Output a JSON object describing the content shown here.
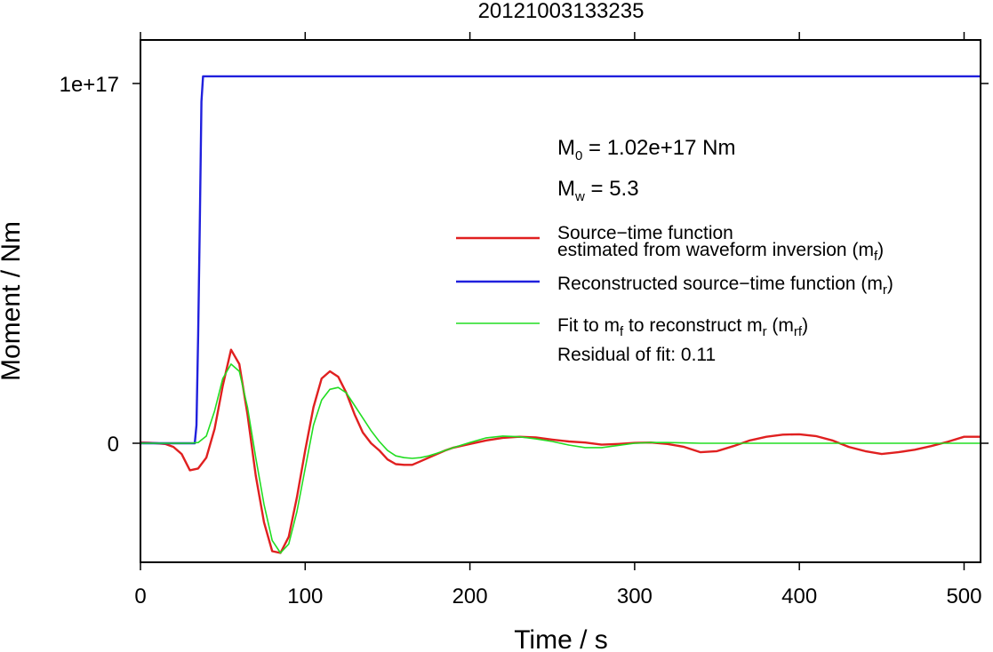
{
  "chart_data": {
    "type": "line",
    "title": "20121003133235",
    "xlabel": "Time / s",
    "ylabel": "Moment / Nm",
    "xlim": [
      0,
      510
    ],
    "ylim": [
      -3.3e+16,
      1.12e+17
    ],
    "x_ticks": [
      0,
      100,
      200,
      300,
      400,
      500
    ],
    "x_tick_labels": [
      "0",
      "100",
      "200",
      "300",
      "400",
      "500"
    ],
    "y_ticks": [
      0,
      1e+17
    ],
    "y_tick_labels": [
      "0",
      "1e+17"
    ],
    "grid": false,
    "legend_position": "top-right",
    "annotations": {
      "m0_prefix": "M",
      "m0_sub": "0",
      "m0_value": " = 1.02e+17 Nm",
      "mw_prefix": "M",
      "mw_sub": "w",
      "mw_value": " = 5.3",
      "residual": "Residual of fit: 0.11"
    },
    "legend": [
      {
        "line1": "Source−time function",
        "line2": "estimated from waveform inversion (m",
        "sub": "f",
        "end": ")"
      },
      {
        "line1": "Reconstructed source−time function (m",
        "sub": "r",
        "end": ")"
      },
      {
        "p1": "Fit to m",
        "sub1": "f",
        "p2": " to reconstruct m",
        "sub2": "r",
        "p3": " (m",
        "sub3": "rf",
        "p4": ")"
      }
    ],
    "series": [
      {
        "color": "#e02020",
        "width": 2.4,
        "x": [
          0,
          5,
          10,
          15,
          20,
          25,
          30,
          35,
          40,
          45,
          50,
          55,
          60,
          65,
          70,
          75,
          80,
          85,
          90,
          95,
          100,
          105,
          110,
          115,
          120,
          125,
          130,
          135,
          140,
          145,
          150,
          155,
          160,
          165,
          170,
          175,
          180,
          185,
          190,
          200,
          210,
          220,
          230,
          240,
          250,
          260,
          270,
          280,
          290,
          300,
          310,
          320,
          330,
          340,
          350,
          360,
          370,
          380,
          390,
          400,
          410,
          420,
          430,
          440,
          450,
          460,
          470,
          480,
          490,
          500,
          510
        ],
        "y": [
          200000000000000.0,
          150000000000000.0,
          0,
          -200000000000000.0,
          -1000000000000000.0,
          -3000000000000000.0,
          -7500000000000000.0,
          -7000000000000000.0,
          -4000000000000000.0,
          4000000000000000.0,
          1.6e+16,
          2.6e+16,
          2.2e+16,
          8000000000000000.0,
          -9000000000000000.0,
          -2.2e+16,
          -3e+16,
          -3.05e+16,
          -2.6e+16,
          -1.5e+16,
          -2000000000000000.0,
          1e+16,
          1.8e+16,
          2e+16,
          1.85e+16,
          1.4e+16,
          8000000000000000.0,
          3000000000000000.0,
          0,
          -2000000000000000.0,
          -4500000000000000.0,
          -5800000000000000.0,
          -6000000000000000.0,
          -6000000000000000.0,
          -5000000000000000.0,
          -4000000000000000.0,
          -3000000000000000.0,
          -2000000000000000.0,
          -1200000000000000.0,
          -200000000000000.0,
          800000000000000.0,
          1500000000000000.0,
          1800000000000000.0,
          1600000000000000.0,
          1000000000000000.0,
          500000000000000.0,
          200000000000000.0,
          -400000000000000.0,
          -200000000000000.0,
          100000000000000.0,
          200000000000000.0,
          -200000000000000.0,
          -1000000000000000.0,
          -2500000000000000.0,
          -2200000000000000.0,
          -800000000000000.0,
          800000000000000.0,
          1800000000000000.0,
          2400000000000000.0,
          2500000000000000.0,
          2000000000000000.0,
          800000000000000.0,
          -1000000000000000.0,
          -2200000000000000.0,
          -3000000000000000.0,
          -2500000000000000.0,
          -1800000000000000.0,
          -800000000000000.0,
          400000000000000.0,
          1800000000000000.0,
          1800000000000000.0
        ]
      },
      {
        "color": "#2020dd",
        "width": 2.4,
        "x": [
          0,
          33,
          34,
          35,
          36,
          37,
          38,
          40,
          60,
          100,
          200,
          300,
          400,
          510
        ],
        "y": [
          0,
          0,
          5000000000000000.0,
          3e+16,
          6e+16,
          9.5e+16,
          1.02e+17,
          1.02e+17,
          1.02e+17,
          1.02e+17,
          1.02e+17,
          1.02e+17,
          1.02e+17,
          1.02e+17
        ]
      },
      {
        "color": "#22dd22",
        "width": 1.6,
        "x": [
          0,
          10,
          20,
          30,
          35,
          40,
          45,
          50,
          55,
          60,
          65,
          70,
          75,
          80,
          85,
          90,
          95,
          100,
          105,
          110,
          115,
          120,
          125,
          130,
          135,
          140,
          145,
          150,
          155,
          160,
          165,
          170,
          175,
          180,
          190,
          200,
          210,
          220,
          230,
          240,
          250,
          260,
          270,
          280,
          290,
          300,
          310,
          320,
          330,
          340,
          350,
          400,
          450,
          510
        ],
        "y": [
          0,
          0,
          0,
          0,
          200000000000000.0,
          2000000000000000.0,
          9000000000000000.0,
          1.8e+16,
          2.2e+16,
          2e+16,
          1e+16,
          -4000000000000000.0,
          -1.7e+16,
          -2.7e+16,
          -3.05e+16,
          -2.8e+16,
          -1.9e+16,
          -7000000000000000.0,
          5000000000000000.0,
          1.2e+16,
          1.5e+16,
          1.55e+16,
          1.4e+16,
          1.05e+16,
          7000000000000000.0,
          3500000000000000.0,
          500000000000000.0,
          -2000000000000000.0,
          -3500000000000000.0,
          -4000000000000000.0,
          -4200000000000000.0,
          -4000000000000000.0,
          -3500000000000000.0,
          -2800000000000000.0,
          -1200000000000000.0,
          200000000000000.0,
          1500000000000000.0,
          2000000000000000.0,
          1800000000000000.0,
          1200000000000000.0,
          500000000000000.0,
          -500000000000000.0,
          -1200000000000000.0,
          -1200000000000000.0,
          -600000000000000.0,
          0,
          200000000000000.0,
          200000000000000.0,
          100000000000000.0,
          0,
          0,
          0,
          0,
          0
        ]
      }
    ]
  }
}
